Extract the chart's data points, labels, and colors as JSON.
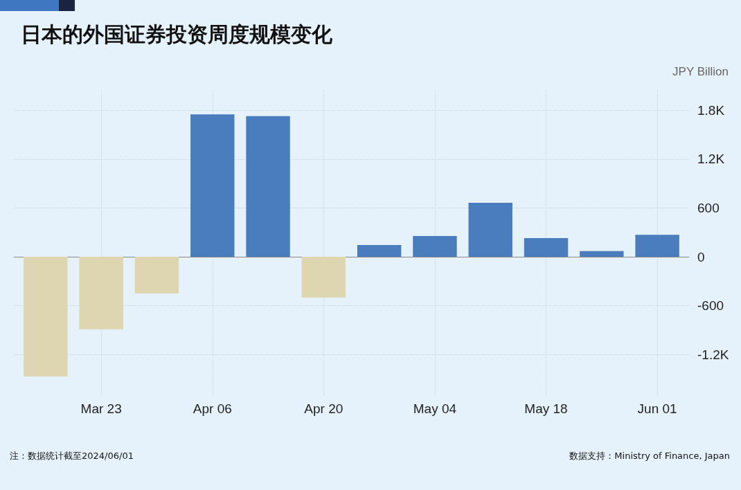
{
  "chart_data": {
    "type": "bar",
    "title": "日本的外国证券投资周度规模变化",
    "ylabel": "JPY Billion",
    "x": [
      "2024-03-16",
      "2024-03-23",
      "2024-03-30",
      "2024-04-06",
      "2024-04-13",
      "2024-04-20",
      "2024-04-27",
      "2024-05-04",
      "2024-05-11",
      "2024-05-18",
      "2024-05-25",
      "2024-06-01"
    ],
    "values": [
      -1470,
      -890,
      -450,
      1750,
      1730,
      -500,
      145,
      255,
      665,
      230,
      70,
      270
    ],
    "colors": [
      "#ddd6b0",
      "#ddd6b0",
      "#ddd6b0",
      "#4a7dbd",
      "#4a7dbd",
      "#ddd6b0",
      "#4a7dbd",
      "#4a7dbd",
      "#4a7dbd",
      "#4a7dbd",
      "#4a7dbd",
      "#4a7dbd"
    ],
    "xlim": [
      "2024-03-12",
      "2024-06-05"
    ],
    "xticks": [
      {
        "value": "2024-03-23",
        "label": "Mar 23"
      },
      {
        "value": "2024-04-06",
        "label": "Apr 06"
      },
      {
        "value": "2024-04-20",
        "label": "Apr 20"
      },
      {
        "value": "2024-05-04",
        "label": "May 04"
      },
      {
        "value": "2024-05-18",
        "label": "May 18"
      },
      {
        "value": "2024-06-01",
        "label": "Jun 01"
      }
    ],
    "ylim": [
      -1700,
      2050
    ],
    "yticks": [
      {
        "value": -1200,
        "label": "-1.2K"
      },
      -600,
      0,
      600,
      {
        "value": 1200,
        "label": "1.2K"
      },
      {
        "value": 1800,
        "label": "1.8K"
      }
    ],
    "grid": true,
    "annotations": [
      "注：数据统计截至2024/06/01",
      "数据支持：Ministry of Finance, Japan"
    ]
  }
}
